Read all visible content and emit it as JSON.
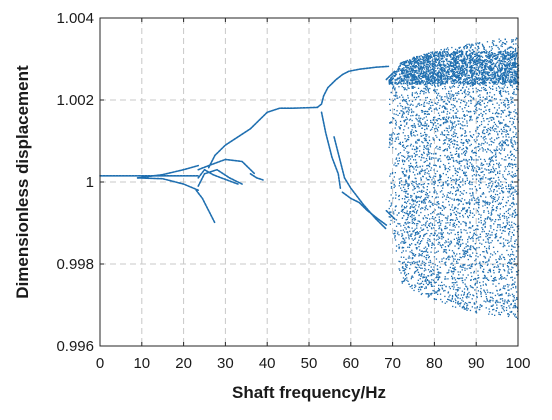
{
  "chart_data": {
    "type": "scatter",
    "title": "",
    "xlabel": "Shaft frequency/Hz",
    "ylabel": "Dimensionless displacement",
    "xlim": [
      0,
      100
    ],
    "ylim": [
      0.996,
      1.004
    ],
    "xticks": [
      0,
      10,
      20,
      30,
      40,
      50,
      60,
      70,
      80,
      90,
      100
    ],
    "yticks": [
      0.996,
      0.998,
      1,
      1.002,
      1.004
    ],
    "ytick_labels": [
      "0.996",
      "0.998",
      "1",
      "1.002",
      "1.004"
    ],
    "grid": true,
    "legend": "none",
    "marker_color": "#1f6fb0",
    "series": [
      {
        "branches": [
          {
            "x": [
              0,
              10,
              20,
              23.5
            ],
            "y": [
              1.00015,
              1.00015,
              1.00015,
              1.00015
            ]
          },
          {
            "x": [
              9,
              15,
              20,
              23.5
            ],
            "y": [
              1.0001,
              1.00018,
              1.0003,
              1.0004
            ]
          },
          {
            "x": [
              9,
              15,
              20,
              23.5
            ],
            "y": [
              1.0001,
              1.00008,
              0.99995,
              0.9998
            ]
          },
          {
            "x": [
              23.5,
              26,
              30,
              34,
              37
            ],
            "y": [
              1.0003,
              1.0004,
              1.00055,
              1.0005,
              1.0002
            ]
          },
          {
            "x": [
              23.5,
              25,
              27,
              29,
              33
            ],
            "y": [
              1.0001,
              1.0003,
              1.00018,
              1.0001,
              0.99995
            ]
          },
          {
            "x": [
              23.5,
              25,
              28,
              31,
              34
            ],
            "y": [
              0.9999,
              1.0002,
              1.0003,
              1.0001,
              0.99995
            ]
          },
          {
            "x": [
              23,
              24.5,
              26,
              27.5
            ],
            "y": [
              0.9998,
              0.9996,
              0.9993,
              0.999
            ]
          },
          {
            "x": [
              26,
              27.5,
              30,
              33,
              36,
              38.5,
              40,
              43,
              46,
              52
            ],
            "y": [
              1.00035,
              1.00065,
              1.0009,
              1.0011,
              1.0013,
              1.00155,
              1.0017,
              1.0018,
              1.0018,
              1.00182
            ]
          },
          {
            "x": [
              36,
              37.5,
              39
            ],
            "y": [
              1.0002,
              1.0001,
              1.00005
            ]
          },
          {
            "x": [
              52,
              53,
              53.5,
              54.5,
              56.5,
              58,
              59.5,
              62,
              66,
              69
            ],
            "y": [
              1.00182,
              1.0019,
              1.0021,
              1.0023,
              1.0025,
              1.00262,
              1.0027,
              1.00275,
              1.0028,
              1.00282
            ]
          },
          {
            "x": [
              53,
              54,
              55.5,
              57,
              57.5
            ],
            "y": [
              1.0017,
              1.0012,
              1.0006,
              1.0002,
              0.99985
            ]
          },
          {
            "x": [
              56,
              57,
              58.5,
              60,
              63,
              66,
              68.5
            ],
            "y": [
              1.0011,
              1.0007,
              1.0001,
              0.99985,
              0.99945,
              0.9991,
              0.99885
            ]
          },
          {
            "x": [
              58,
              60,
              62,
              64,
              66.5,
              68.5
            ],
            "y": [
              0.99975,
              0.9996,
              0.9995,
              0.9993,
              0.9991,
              0.99895
            ]
          },
          {
            "x": [
              68.5,
              69.5,
              70.5
            ],
            "y": [
              1.0025,
              1.0026,
              1.0027
            ]
          },
          {
            "x": [
              68.5,
              69.5,
              70.5
            ],
            "y": [
              0.9993,
              0.9992,
              0.9991
            ]
          }
        ]
      },
      {
        "chaotic_region": {
          "x_range": [
            69,
            100
          ],
          "upper_edge": {
            "x": [
              69,
              72,
              76,
              80,
              85,
              90,
              95,
              100
            ],
            "y": [
              1.0025,
              1.00295,
              1.0031,
              1.00322,
              1.00333,
              1.00342,
              1.0035,
              1.00358
            ]
          },
          "lower_edge": {
            "x": [
              69,
              72,
              76,
              80,
              85,
              90,
              95,
              100
            ],
            "y": [
              0.99915,
              0.99755,
              0.9973,
              0.99715,
              0.99695,
              0.99682,
              0.99675,
              0.99668
            ]
          },
          "dense_band": [
            1.0024,
            1.0032
          ]
        }
      }
    ]
  }
}
